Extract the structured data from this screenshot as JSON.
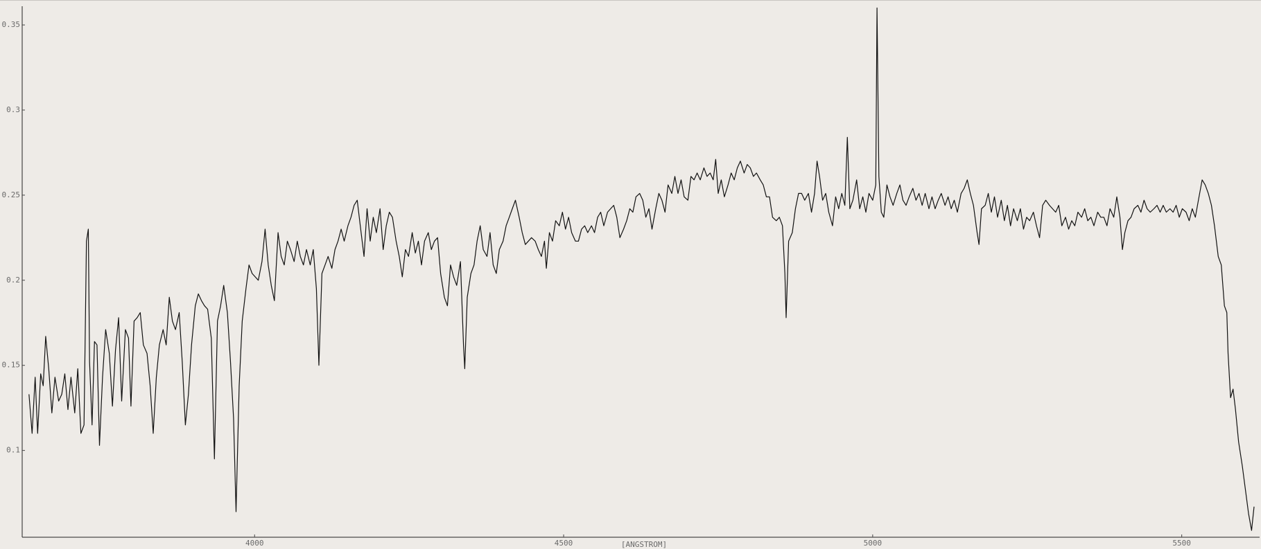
{
  "chart_data": {
    "type": "line",
    "xlabel": "[ANGSTROM]",
    "x": [
      3635,
      3640,
      3645,
      3649,
      3654,
      3658,
      3662,
      3667,
      3672,
      3677,
      3683,
      3688,
      3693,
      3698,
      3703,
      3709,
      3714,
      3719,
      3724,
      3728,
      3731,
      3733,
      3737,
      3741,
      3745,
      3749,
      3754,
      3759,
      3765,
      3770,
      3775,
      3780,
      3785,
      3791,
      3796,
      3800,
      3805,
      3810,
      3815,
      3820,
      3826,
      3831,
      3836,
      3841,
      3846,
      3852,
      3857,
      3862,
      3867,
      3872,
      3878,
      3883,
      3888,
      3893,
      3898,
      3904,
      3909,
      3914,
      3919,
      3924,
      3930,
      3935,
      3940,
      3945,
      3950,
      3956,
      3961,
      3966,
      3970,
      3975,
      3980,
      3986,
      3991,
      3996,
      4001,
      4006,
      4012,
      4017,
      4022,
      4027,
      4032,
      4038,
      4043,
      4048,
      4053,
      4058,
      4064,
      4069,
      4074,
      4079,
      4084,
      4090,
      4095,
      4100,
      4104,
      4109,
      4114,
      4119,
      4125,
      4130,
      4135,
      4140,
      4145,
      4151,
      4156,
      4161,
      4166,
      4171,
      4177,
      4182,
      4187,
      4192,
      4197,
      4203,
      4208,
      4213,
      4218,
      4223,
      4229,
      4234,
      4239,
      4244,
      4249,
      4255,
      4260,
      4265,
      4270,
      4275,
      4281,
      4286,
      4291,
      4296,
      4301,
      4307,
      4312,
      4317,
      4322,
      4327,
      4333,
      4338,
      4340,
      4344,
      4350,
      4355,
      4360,
      4365,
      4370,
      4376,
      4381,
      4386,
      4391,
      4396,
      4402,
      4407,
      4412,
      4417,
      4422,
      4428,
      4433,
      4438,
      4443,
      4448,
      4454,
      4459,
      4464,
      4469,
      4472,
      4477,
      4482,
      4487,
      4493,
      4498,
      4503,
      4508,
      4513,
      4519,
      4524,
      4529,
      4534,
      4539,
      4545,
      4550,
      4555,
      4560,
      4565,
      4571,
      4576,
      4581,
      4586,
      4591,
      4597,
      4602,
      4607,
      4612,
      4617,
      4623,
      4628,
      4633,
      4638,
      4643,
      4649,
      4654,
      4659,
      4664,
      4669,
      4675,
      4680,
      4685,
      4690,
      4695,
      4701,
      4706,
      4711,
      4716,
      4721,
      4727,
      4732,
      4737,
      4742,
      4746,
      4750,
      4755,
      4760,
      4766,
      4771,
      4776,
      4781,
      4786,
      4792,
      4797,
      4802,
      4807,
      4812,
      4818,
      4823,
      4828,
      4833,
      4838,
      4844,
      4849,
      4854,
      4858,
      4860,
      4864,
      4870,
      4875,
      4880,
      4885,
      4890,
      4896,
      4901,
      4906,
      4910,
      4914,
      4919,
      4924,
      4929,
      4935,
      4940,
      4945,
      4950,
      4955,
      4959,
      4963,
      4968,
      4974,
      4979,
      4984,
      4989,
      4994,
      5000,
      5005,
      5007,
      5010,
      5014,
      5018,
      5023,
      5028,
      5033,
      5039,
      5044,
      5049,
      5054,
      5059,
      5065,
      5070,
      5075,
      5080,
      5085,
      5091,
      5096,
      5101,
      5106,
      5111,
      5117,
      5122,
      5127,
      5132,
      5137,
      5143,
      5148,
      5153,
      5158,
      5163,
      5169,
      5172,
      5176,
      5182,
      5187,
      5192,
      5197,
      5202,
      5208,
      5213,
      5218,
      5223,
      5228,
      5234,
      5239,
      5244,
      5249,
      5254,
      5260,
      5265,
      5270,
      5275,
      5280,
      5286,
      5291,
      5296,
      5301,
      5306,
      5312,
      5317,
      5322,
      5327,
      5332,
      5338,
      5343,
      5348,
      5353,
      5358,
      5364,
      5369,
      5374,
      5379,
      5384,
      5390,
      5395,
      5400,
      5404,
      5408,
      5413,
      5418,
      5423,
      5429,
      5434,
      5439,
      5444,
      5449,
      5455,
      5460,
      5465,
      5470,
      5475,
      5481,
      5486,
      5491,
      5496,
      5501,
      5507,
      5512,
      5517,
      5522,
      5527,
      5533,
      5538,
      5543,
      5548,
      5553,
      5559,
      5564,
      5569,
      5573,
      5575,
      5579,
      5583,
      5587,
      5592,
      5598,
      5603,
      5608,
      5613,
      5617
    ],
    "series": [
      {
        "color": "#111111",
        "values": [
          0.133,
          0.11,
          0.143,
          0.11,
          0.145,
          0.138,
          0.167,
          0.148,
          0.122,
          0.143,
          0.129,
          0.133,
          0.145,
          0.124,
          0.143,
          0.122,
          0.148,
          0.11,
          0.115,
          0.223,
          0.23,
          0.152,
          0.115,
          0.164,
          0.162,
          0.103,
          0.143,
          0.171,
          0.157,
          0.126,
          0.159,
          0.178,
          0.129,
          0.171,
          0.166,
          0.126,
          0.176,
          0.178,
          0.181,
          0.162,
          0.157,
          0.138,
          0.11,
          0.143,
          0.162,
          0.171,
          0.162,
          0.19,
          0.176,
          0.171,
          0.181,
          0.152,
          0.115,
          0.133,
          0.162,
          0.185,
          0.192,
          0.188,
          0.185,
          0.183,
          0.166,
          0.095,
          0.176,
          0.185,
          0.197,
          0.181,
          0.152,
          0.119,
          0.064,
          0.138,
          0.176,
          0.195,
          0.209,
          0.204,
          0.202,
          0.2,
          0.211,
          0.23,
          0.209,
          0.197,
          0.188,
          0.228,
          0.214,
          0.209,
          0.223,
          0.218,
          0.211,
          0.223,
          0.214,
          0.209,
          0.218,
          0.209,
          0.218,
          0.195,
          0.15,
          0.204,
          0.209,
          0.214,
          0.207,
          0.218,
          0.223,
          0.23,
          0.223,
          0.232,
          0.237,
          0.244,
          0.247,
          0.232,
          0.214,
          0.242,
          0.223,
          0.237,
          0.228,
          0.242,
          0.218,
          0.232,
          0.24,
          0.237,
          0.223,
          0.214,
          0.202,
          0.218,
          0.214,
          0.228,
          0.216,
          0.223,
          0.209,
          0.223,
          0.228,
          0.218,
          0.223,
          0.225,
          0.204,
          0.19,
          0.185,
          0.209,
          0.202,
          0.197,
          0.211,
          0.162,
          0.148,
          0.19,
          0.204,
          0.209,
          0.223,
          0.232,
          0.218,
          0.214,
          0.228,
          0.209,
          0.204,
          0.218,
          0.223,
          0.232,
          0.237,
          0.242,
          0.247,
          0.237,
          0.228,
          0.221,
          0.223,
          0.225,
          0.223,
          0.218,
          0.214,
          0.223,
          0.207,
          0.228,
          0.223,
          0.235,
          0.232,
          0.24,
          0.23,
          0.237,
          0.228,
          0.223,
          0.223,
          0.23,
          0.232,
          0.228,
          0.232,
          0.228,
          0.237,
          0.24,
          0.232,
          0.24,
          0.242,
          0.244,
          0.237,
          0.225,
          0.23,
          0.235,
          0.242,
          0.24,
          0.249,
          0.251,
          0.247,
          0.237,
          0.242,
          0.23,
          0.242,
          0.251,
          0.247,
          0.24,
          0.256,
          0.251,
          0.261,
          0.251,
          0.259,
          0.249,
          0.247,
          0.261,
          0.259,
          0.263,
          0.259,
          0.266,
          0.261,
          0.263,
          0.259,
          0.271,
          0.251,
          0.259,
          0.249,
          0.256,
          0.263,
          0.259,
          0.266,
          0.27,
          0.263,
          0.268,
          0.266,
          0.261,
          0.263,
          0.259,
          0.256,
          0.249,
          0.249,
          0.237,
          0.235,
          0.237,
          0.232,
          0.204,
          0.178,
          0.223,
          0.228,
          0.242,
          0.251,
          0.251,
          0.247,
          0.251,
          0.24,
          0.251,
          0.27,
          0.261,
          0.247,
          0.251,
          0.24,
          0.232,
          0.249,
          0.242,
          0.251,
          0.244,
          0.284,
          0.242,
          0.247,
          0.259,
          0.242,
          0.249,
          0.24,
          0.251,
          0.247,
          0.256,
          0.36,
          0.261,
          0.24,
          0.237,
          0.256,
          0.249,
          0.244,
          0.251,
          0.256,
          0.247,
          0.244,
          0.249,
          0.254,
          0.247,
          0.251,
          0.244,
          0.251,
          0.242,
          0.249,
          0.242,
          0.247,
          0.251,
          0.244,
          0.249,
          0.242,
          0.247,
          0.24,
          0.251,
          0.254,
          0.259,
          0.251,
          0.244,
          0.228,
          0.221,
          0.242,
          0.244,
          0.251,
          0.24,
          0.249,
          0.237,
          0.247,
          0.235,
          0.244,
          0.232,
          0.242,
          0.235,
          0.242,
          0.23,
          0.237,
          0.235,
          0.24,
          0.232,
          0.225,
          0.244,
          0.247,
          0.244,
          0.242,
          0.24,
          0.244,
          0.232,
          0.237,
          0.23,
          0.235,
          0.232,
          0.24,
          0.237,
          0.242,
          0.235,
          0.237,
          0.232,
          0.24,
          0.237,
          0.237,
          0.232,
          0.242,
          0.237,
          0.249,
          0.237,
          0.218,
          0.228,
          0.235,
          0.237,
          0.242,
          0.244,
          0.24,
          0.247,
          0.242,
          0.24,
          0.242,
          0.244,
          0.24,
          0.244,
          0.24,
          0.242,
          0.24,
          0.244,
          0.237,
          0.242,
          0.24,
          0.235,
          0.242,
          0.237,
          0.247,
          0.259,
          0.256,
          0.251,
          0.244,
          0.232,
          0.214,
          0.209,
          0.185,
          0.181,
          0.157,
          0.131,
          0.136,
          0.124,
          0.105,
          0.091,
          0.077,
          0.063,
          0.053,
          0.067
        ]
      }
    ],
    "xlim": [
      3624,
      5626
    ],
    "ylim": [
      0.049,
      0.361
    ],
    "xticks": [
      4000,
      4500,
      5000,
      5500
    ],
    "yticks": [
      0.1,
      0.15,
      0.2,
      0.25,
      0.3,
      0.35
    ]
  }
}
